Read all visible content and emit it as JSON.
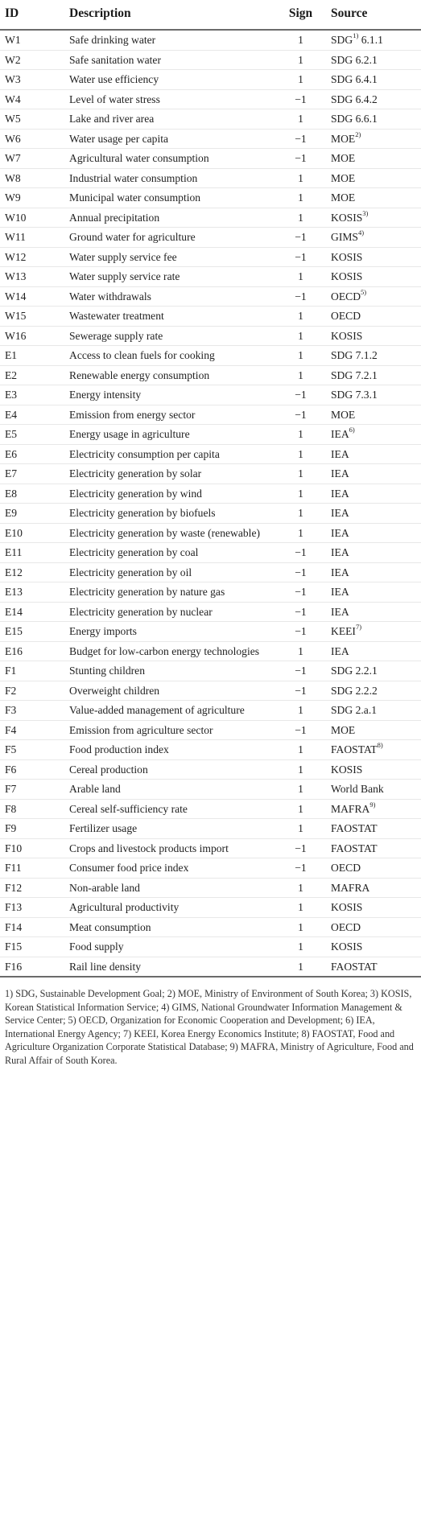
{
  "headers": {
    "id": "ID",
    "description": "Description",
    "sign": "Sign",
    "source": "Source"
  },
  "rows": [
    {
      "id": "W1",
      "desc": "Safe drinking water",
      "sign": "1",
      "src": "SDG",
      "sup": "1)",
      "after": " 6.1.1"
    },
    {
      "id": "W2",
      "desc": "Safe sanitation water",
      "sign": "1",
      "src": "SDG 6.2.1",
      "sup": "",
      "after": ""
    },
    {
      "id": "W3",
      "desc": "Water use efficiency",
      "sign": "1",
      "src": "SDG 6.4.1",
      "sup": "",
      "after": ""
    },
    {
      "id": "W4",
      "desc": "Level of water stress",
      "sign": "−1",
      "src": "SDG 6.4.2",
      "sup": "",
      "after": ""
    },
    {
      "id": "W5",
      "desc": "Lake and river area",
      "sign": "1",
      "src": "SDG 6.6.1",
      "sup": "",
      "after": ""
    },
    {
      "id": "W6",
      "desc": "Water usage per capita",
      "sign": "−1",
      "src": "MOE",
      "sup": "2)",
      "after": ""
    },
    {
      "id": "W7",
      "desc": "Agricultural water consumption",
      "sign": "−1",
      "src": "MOE",
      "sup": "",
      "after": ""
    },
    {
      "id": "W8",
      "desc": "Industrial water consumption",
      "sign": "1",
      "src": "MOE",
      "sup": "",
      "after": ""
    },
    {
      "id": "W9",
      "desc": "Municipal water consumption",
      "sign": "1",
      "src": "MOE",
      "sup": "",
      "after": ""
    },
    {
      "id": "W10",
      "desc": "Annual precipitation",
      "sign": "1",
      "src": "KOSIS",
      "sup": "3)",
      "after": ""
    },
    {
      "id": "W11",
      "desc": "Ground water for agriculture",
      "sign": "−1",
      "src": "GIMS",
      "sup": "4)",
      "after": ""
    },
    {
      "id": "W12",
      "desc": "Water supply service fee",
      "sign": "−1",
      "src": "KOSIS",
      "sup": "",
      "after": ""
    },
    {
      "id": "W13",
      "desc": "Water supply service rate",
      "sign": "1",
      "src": "KOSIS",
      "sup": "",
      "after": ""
    },
    {
      "id": "W14",
      "desc": "Water withdrawals",
      "sign": "−1",
      "src": "OECD",
      "sup": "5)",
      "after": ""
    },
    {
      "id": "W15",
      "desc": "Wastewater treatment",
      "sign": "1",
      "src": "OECD",
      "sup": "",
      "after": ""
    },
    {
      "id": "W16",
      "desc": "Sewerage supply rate",
      "sign": "1",
      "src": "KOSIS",
      "sup": "",
      "after": ""
    },
    {
      "id": "E1",
      "desc": "Access to clean fuels for cooking",
      "sign": "1",
      "src": "SDG 7.1.2",
      "sup": "",
      "after": ""
    },
    {
      "id": "E2",
      "desc": "Renewable energy consumption",
      "sign": "1",
      "src": "SDG 7.2.1",
      "sup": "",
      "after": ""
    },
    {
      "id": "E3",
      "desc": "Energy intensity",
      "sign": "−1",
      "src": "SDG 7.3.1",
      "sup": "",
      "after": ""
    },
    {
      "id": "E4",
      "desc": "Emission from energy sector",
      "sign": "−1",
      "src": "MOE",
      "sup": "",
      "after": ""
    },
    {
      "id": "E5",
      "desc": "Energy usage in agriculture",
      "sign": "1",
      "src": "IEA",
      "sup": "6)",
      "after": ""
    },
    {
      "id": "E6",
      "desc": "Electricity consumption per capita",
      "sign": "1",
      "src": "IEA",
      "sup": "",
      "after": ""
    },
    {
      "id": "E7",
      "desc": "Electricity generation by solar",
      "sign": "1",
      "src": "IEA",
      "sup": "",
      "after": ""
    },
    {
      "id": "E8",
      "desc": "Electricity generation by wind",
      "sign": "1",
      "src": "IEA",
      "sup": "",
      "after": ""
    },
    {
      "id": "E9",
      "desc": "Electricity generation by biofuels",
      "sign": "1",
      "src": "IEA",
      "sup": "",
      "after": ""
    },
    {
      "id": "E10",
      "desc": "Electricity generation by waste (renewable)",
      "sign": "1",
      "src": "IEA",
      "sup": "",
      "after": ""
    },
    {
      "id": "E11",
      "desc": "Electricity generation by coal",
      "sign": "−1",
      "src": "IEA",
      "sup": "",
      "after": ""
    },
    {
      "id": "E12",
      "desc": "Electricity generation by oil",
      "sign": "−1",
      "src": "IEA",
      "sup": "",
      "after": ""
    },
    {
      "id": "E13",
      "desc": "Electricity generation by nature gas",
      "sign": "−1",
      "src": "IEA",
      "sup": "",
      "after": ""
    },
    {
      "id": "E14",
      "desc": "Electricity generation by nuclear",
      "sign": "−1",
      "src": "IEA",
      "sup": "",
      "after": ""
    },
    {
      "id": "E15",
      "desc": "Energy imports",
      "sign": "−1",
      "src": "KEEI",
      "sup": "7)",
      "after": ""
    },
    {
      "id": "E16",
      "desc": "Budget for low-carbon energy technologies",
      "sign": "1",
      "src": "IEA",
      "sup": "",
      "after": ""
    },
    {
      "id": "F1",
      "desc": "Stunting children",
      "sign": "−1",
      "src": "SDG 2.2.1",
      "sup": "",
      "after": ""
    },
    {
      "id": "F2",
      "desc": "Overweight children",
      "sign": "−1",
      "src": "SDG 2.2.2",
      "sup": "",
      "after": ""
    },
    {
      "id": "F3",
      "desc": "Value-added management of agriculture",
      "sign": "1",
      "src": "SDG 2.a.1",
      "sup": "",
      "after": ""
    },
    {
      "id": "F4",
      "desc": "Emission from agriculture sector",
      "sign": "−1",
      "src": "MOE",
      "sup": "",
      "after": ""
    },
    {
      "id": "F5",
      "desc": "Food production index",
      "sign": "1",
      "src": "FAOSTAT",
      "sup": "8)",
      "after": ""
    },
    {
      "id": "F6",
      "desc": "Cereal production",
      "sign": "1",
      "src": "KOSIS",
      "sup": "",
      "after": ""
    },
    {
      "id": "F7",
      "desc": "Arable land",
      "sign": "1",
      "src": "World Bank",
      "sup": "",
      "after": ""
    },
    {
      "id": "F8",
      "desc": "Cereal self-sufficiency rate",
      "sign": "1",
      "src": "MAFRA",
      "sup": "9)",
      "after": ""
    },
    {
      "id": "F9",
      "desc": "Fertilizer usage",
      "sign": "1",
      "src": "FAOSTAT",
      "sup": "",
      "after": ""
    },
    {
      "id": "F10",
      "desc": "Crops and livestock products import",
      "sign": "−1",
      "src": "FAOSTAT",
      "sup": "",
      "after": ""
    },
    {
      "id": "F11",
      "desc": "Consumer food price index",
      "sign": "−1",
      "src": "OECD",
      "sup": "",
      "after": ""
    },
    {
      "id": "F12",
      "desc": "Non-arable land",
      "sign": "1",
      "src": "MAFRA",
      "sup": "",
      "after": ""
    },
    {
      "id": "F13",
      "desc": "Agricultural productivity",
      "sign": "1",
      "src": "KOSIS",
      "sup": "",
      "after": ""
    },
    {
      "id": "F14",
      "desc": "Meat consumption",
      "sign": "1",
      "src": "OECD",
      "sup": "",
      "after": ""
    },
    {
      "id": "F15",
      "desc": "Food supply",
      "sign": "1",
      "src": "KOSIS",
      "sup": "",
      "after": ""
    },
    {
      "id": "F16",
      "desc": "Rail line density",
      "sign": "1",
      "src": "FAOSTAT",
      "sup": "",
      "after": ""
    }
  ],
  "footnote": "1) SDG, Sustainable Development Goal; 2) MOE, Ministry of Environment of South Korea; 3) KOSIS, Korean Statistical Information Service; 4) GIMS, National Groundwater Information Management & Service Center; 5) OECD, Organization for Economic Cooperation and Development; 6) IEA, International Energy Agency; 7) KEEI, Korea Energy Economics Institute; 8) FAOSTAT, Food and Agriculture Organization Corporate Statistical Database; 9) MAFRA, Ministry of Agriculture, Food and Rural Affair of South Korea."
}
